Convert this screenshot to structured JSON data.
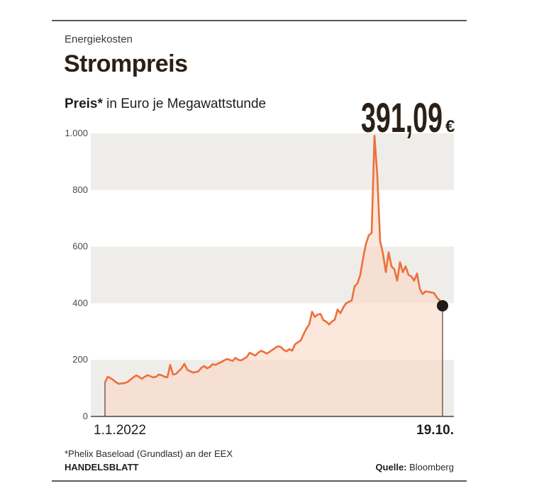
{
  "header": {
    "kicker": "Energiekosten",
    "title": "Strompreis",
    "subtitle_bold": "Preis*",
    "subtitle_rest": " in Euro je Megawattstunde"
  },
  "highlight": {
    "value": "391,09",
    "unit": "€"
  },
  "footer": {
    "footnote": "*Phelix Baseload (Grundlast) an der EEX",
    "publisher": "HANDELSBLATT",
    "source_label": "Quelle:",
    "source_value": " Bloomberg"
  },
  "colors": {
    "line": "#ee6f3a",
    "area": "#f8d7c5",
    "band": "#efede9",
    "end_marker": "#1f1a17"
  },
  "chart_data": {
    "type": "area",
    "title": "Strompreis",
    "ylabel": "Preis* in Euro je Megawattstunde",
    "ylim": [
      0,
      1000
    ],
    "yticks": [
      0,
      200,
      400,
      600,
      800,
      1000
    ],
    "ytick_labels": [
      "0",
      "200",
      "400",
      "600",
      "800",
      "1.000"
    ],
    "x_start_label": "1.1.2022",
    "x_end_label": "19.10.",
    "grid": "alternating horizontal bands",
    "series": [
      {
        "values": [
          120,
          140,
          135,
          128,
          120,
          115,
          117,
          118,
          122,
          130,
          138,
          145,
          140,
          133,
          140,
          146,
          142,
          138,
          140,
          148,
          145,
          140,
          138,
          182,
          148,
          150,
          160,
          170,
          186,
          165,
          160,
          155,
          157,
          160,
          172,
          178,
          170,
          175,
          185,
          182,
          188,
          192,
          198,
          203,
          200,
          196,
          207,
          200,
          198,
          204,
          210,
          225,
          220,
          215,
          225,
          232,
          228,
          222,
          228,
          235,
          242,
          248,
          245,
          235,
          230,
          238,
          232,
          255,
          262,
          268,
          290,
          310,
          325,
          370,
          352,
          360,
          362,
          340,
          335,
          325,
          335,
          342,
          378,
          365,
          385,
          400,
          405,
          410,
          460,
          470,
          500,
          560,
          610,
          640,
          648,
          992,
          850,
          620,
          575,
          510,
          580,
          530,
          520,
          480,
          545,
          510,
          530,
          500,
          495,
          480,
          505,
          450,
          432,
          442,
          440,
          438,
          436,
          420,
          410,
          391.09
        ]
      }
    ],
    "last_value": 391.09
  }
}
